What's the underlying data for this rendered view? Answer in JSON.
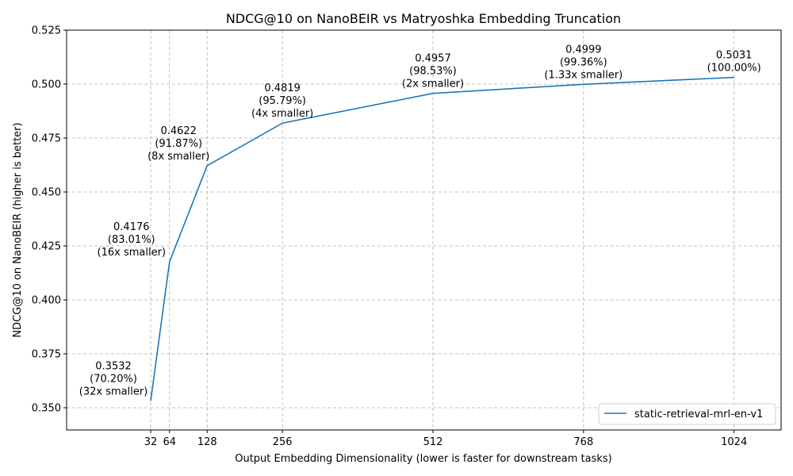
{
  "chart_data": {
    "type": "line",
    "title": "NDCG@10 on NanoBEIR vs Matryoshka Embedding Truncation",
    "xlabel": "Output Embedding Dimensionality (lower is faster for downstream tasks)",
    "ylabel": "NDCG@10 on NanoBEIR (higher is better)",
    "xlim": [
      -111,
      1104
    ],
    "ylim": [
      0.3397,
      0.525
    ],
    "x_ticks": [
      32,
      64,
      128,
      256,
      512,
      768,
      1024
    ],
    "y_ticks": [
      "0.350",
      "0.375",
      "0.400",
      "0.425",
      "0.450",
      "0.475",
      "0.500",
      "0.525"
    ],
    "grid": true,
    "legend_position": "lower-right",
    "series": [
      {
        "name": "static-retrieval-mrl-en-v1",
        "color": "#1f77b4",
        "x": [
          32,
          64,
          128,
          256,
          512,
          768,
          1024
        ],
        "y": [
          0.3532,
          0.4176,
          0.4622,
          0.4819,
          0.4957,
          0.4999,
          0.5031
        ]
      }
    ],
    "annotations": [
      [
        "0.3532",
        "(70.20%)",
        "(32x smaller)"
      ],
      [
        "0.4176",
        "(83.01%)",
        "(16x smaller)"
      ],
      [
        "0.4622",
        "(91.87%)",
        "(8x smaller)"
      ],
      [
        "0.4819",
        "(95.79%)",
        "(4x smaller)"
      ],
      [
        "0.4957",
        "(98.53%)",
        "(2x smaller)"
      ],
      [
        "0.4999",
        "(99.36%)",
        "(1.33x smaller)"
      ],
      [
        "0.5031",
        "(100.00%)"
      ]
    ]
  }
}
